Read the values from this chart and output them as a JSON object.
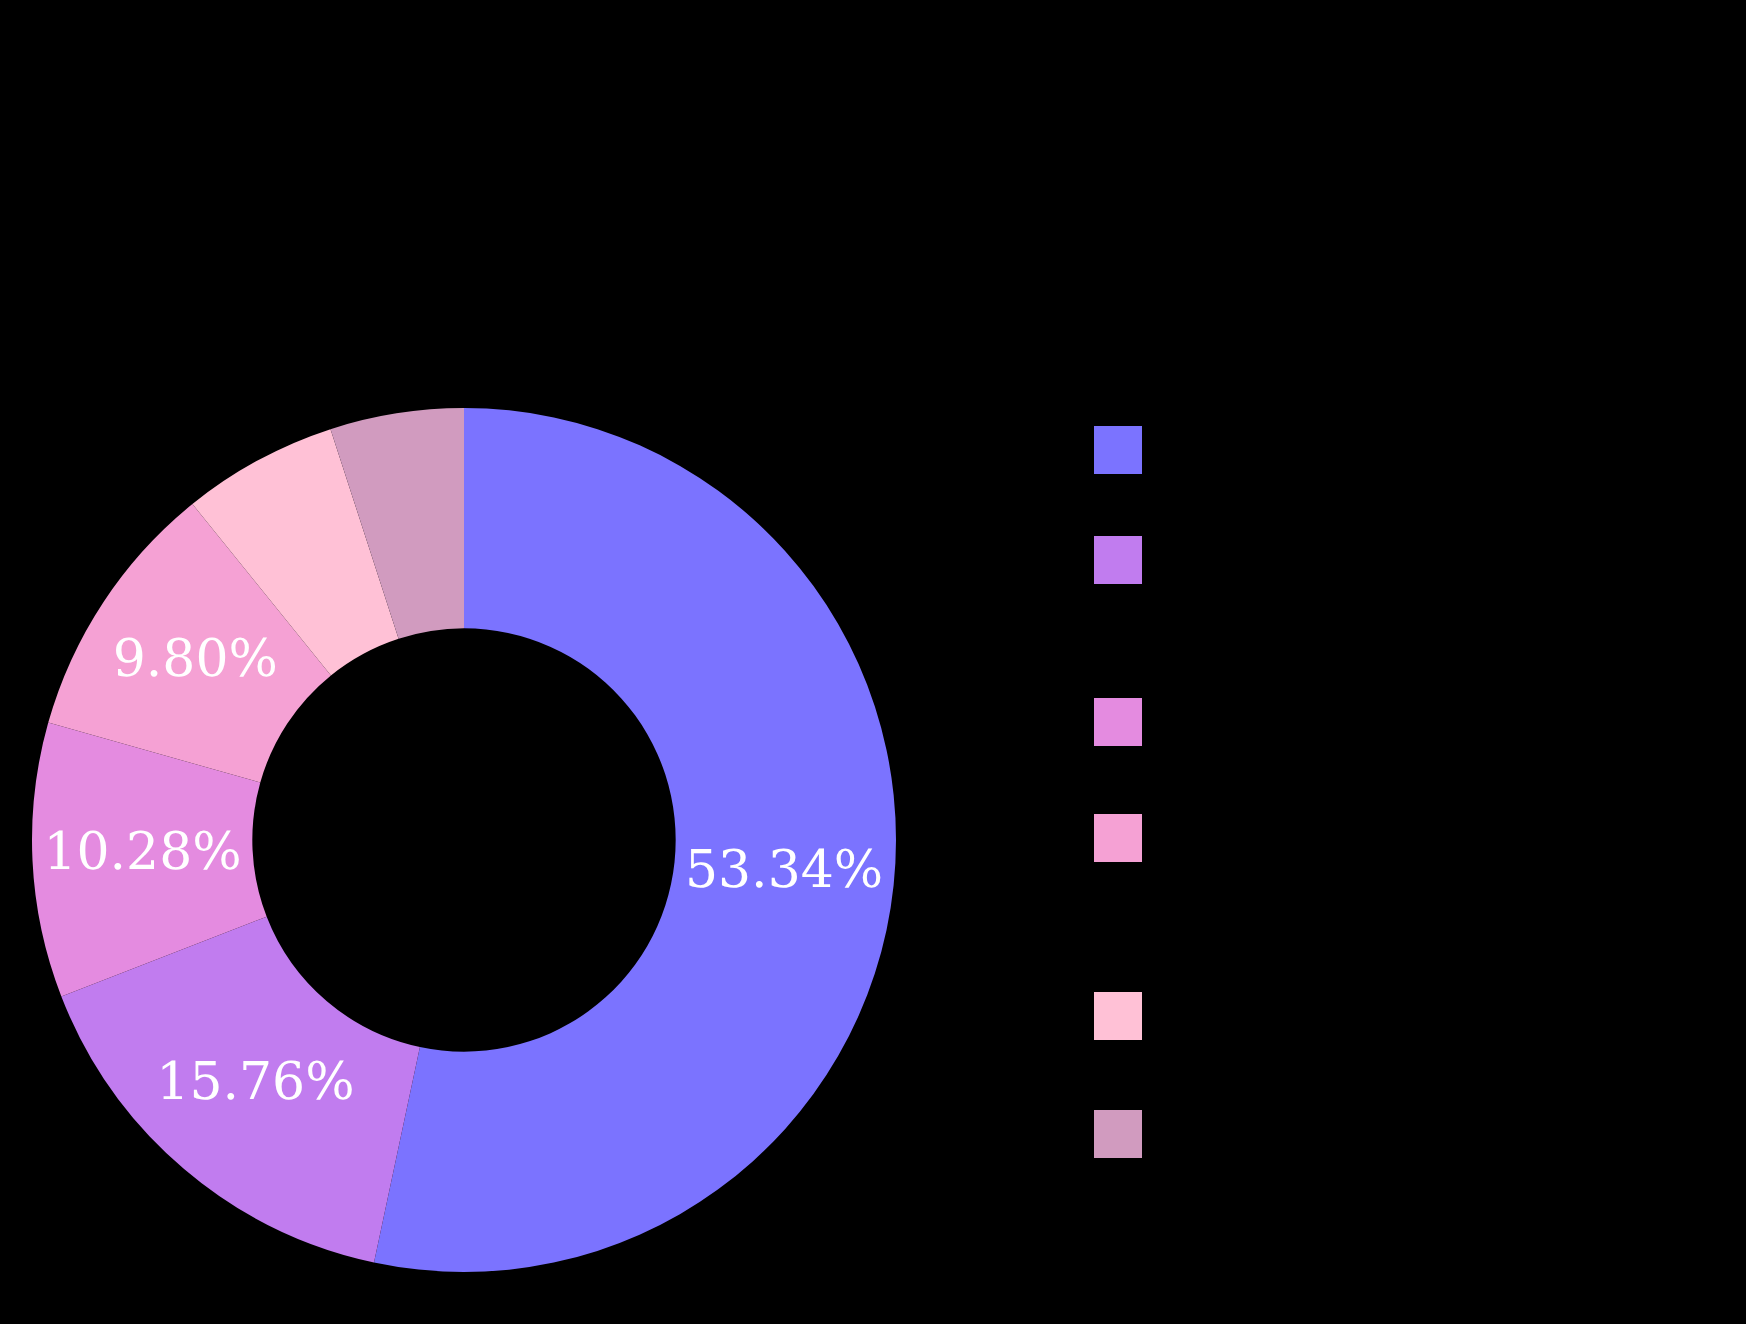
{
  "chart_data": {
    "type": "donut",
    "categories": [
      null,
      null,
      null,
      null,
      null,
      null
    ],
    "values": [
      53.34,
      15.76,
      10.28,
      9.8,
      5.82,
      5.0
    ],
    "value_labels": [
      "53.34%",
      "15.76%",
      "10.28%",
      "9.80%",
      null,
      null
    ],
    "colors": [
      "#7b73ff",
      "#c17cef",
      "#e48be0",
      "#f5a1d4",
      "#ffc1d6",
      "#d19bbf"
    ],
    "legend": false
  }
}
